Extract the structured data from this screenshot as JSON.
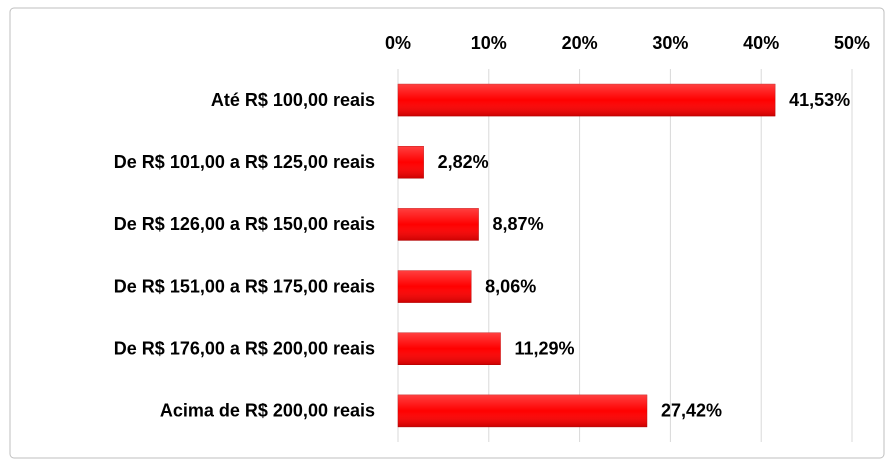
{
  "chart_data": {
    "type": "hbar",
    "categories": [
      "Até R$ 100,00 reais",
      "De R$ 101,00 a R$ 125,00 reais",
      "De R$ 126,00 a R$ 150,00 reais",
      "De R$ 151,00 a R$ 175,00 reais",
      "De R$ 176,00 a R$ 200,00 reais",
      "Acima de R$ 200,00 reais"
    ],
    "values": [
      41.53,
      2.82,
      8.87,
      8.06,
      11.29,
      27.42
    ],
    "value_labels": [
      "41,53%",
      "2,82%",
      "8,87%",
      "8,06%",
      "11,29%",
      "27,42%"
    ],
    "color": "#ff0000",
    "xlim": [
      0,
      50
    ],
    "xticks": [
      {
        "value": 0,
        "label": "0%"
      },
      {
        "value": 10,
        "label": "10%"
      },
      {
        "value": 20,
        "label": "20%"
      },
      {
        "value": 30,
        "label": "30%"
      },
      {
        "value": 40,
        "label": "40%"
      },
      {
        "value": 50,
        "label": "50%"
      }
    ],
    "grid": true
  }
}
